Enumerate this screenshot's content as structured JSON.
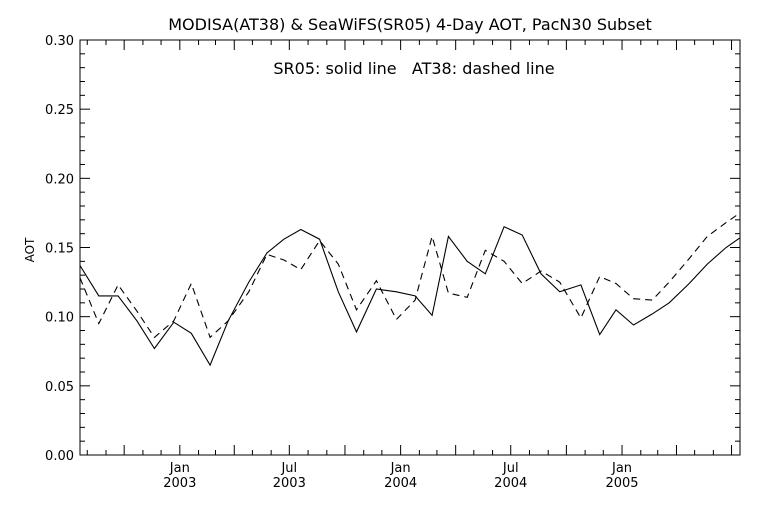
{
  "chart_data": {
    "type": "line",
    "title": "MODISA(AT38) & SeaWiFS(SR05) 4-Day AOT, PacN30 Subset",
    "annotation": "SR05: solid line   AT38: dashed line",
    "ylabel": "AOT",
    "xlabel": "",
    "ylim": [
      0.0,
      0.3
    ],
    "yticks": [
      "0.00",
      "0.05",
      "0.10",
      "0.15",
      "0.20",
      "0.25",
      "0.30"
    ],
    "xlim": [
      "2002-07-20",
      "2005-07-15"
    ],
    "xticks": [
      {
        "x": "2003-01-01",
        "label": [
          "Jan",
          "2003"
        ]
      },
      {
        "x": "2003-07-01",
        "label": [
          "Jul",
          "2003"
        ]
      },
      {
        "x": "2004-01-01",
        "label": [
          "Jan",
          "2004"
        ]
      },
      {
        "x": "2004-07-01",
        "label": [
          "Jul",
          "2004"
        ]
      },
      {
        "x": "2005-01-01",
        "label": [
          "Jan",
          "2005"
        ]
      }
    ],
    "grid": false,
    "series": [
      {
        "name": "SR05",
        "style": "solid",
        "color": "#000000",
        "x": [
          "2002-07-20",
          "2002-08-20",
          "2002-09-21",
          "2002-10-22",
          "2002-11-20",
          "2002-12-22",
          "2003-01-20",
          "2003-02-20",
          "2003-03-22",
          "2003-04-25",
          "2003-05-25",
          "2003-06-22",
          "2003-07-20",
          "2003-08-20",
          "2003-09-20",
          "2003-10-20",
          "2003-11-22",
          "2003-12-25",
          "2004-01-25",
          "2004-02-22",
          "2004-03-20",
          "2004-04-20",
          "2004-05-20",
          "2004-06-20",
          "2004-07-20",
          "2004-08-20",
          "2004-09-20",
          "2004-10-25",
          "2004-11-25",
          "2004-12-22",
          "2005-01-20",
          "2005-02-20",
          "2005-03-20",
          "2005-04-22",
          "2005-05-22",
          "2005-06-22",
          "2005-07-15"
        ],
        "y": [
          0.137,
          0.115,
          0.115,
          0.097,
          0.077,
          0.096,
          0.088,
          0.065,
          0.097,
          0.125,
          0.146,
          0.156,
          0.163,
          0.156,
          0.118,
          0.089,
          0.12,
          0.118,
          0.115,
          0.101,
          0.158,
          0.14,
          0.131,
          0.165,
          0.159,
          0.131,
          0.118,
          0.123,
          0.087,
          0.105,
          0.094,
          0.102,
          0.11,
          0.124,
          0.138,
          0.15,
          0.157
        ]
      },
      {
        "name": "AT38",
        "style": "dashed",
        "color": "#000000",
        "x": [
          "2002-07-20",
          "2002-08-20",
          "2002-09-21",
          "2002-10-22",
          "2002-11-20",
          "2002-12-22",
          "2003-01-20",
          "2003-02-20",
          "2003-03-22",
          "2003-04-25",
          "2003-05-25",
          "2003-06-22",
          "2003-07-20",
          "2003-08-20",
          "2003-09-20",
          "2003-10-20",
          "2003-11-22",
          "2003-12-25",
          "2004-01-25",
          "2004-02-22",
          "2004-03-20",
          "2004-04-20",
          "2004-05-20",
          "2004-06-20",
          "2004-07-20",
          "2004-08-20",
          "2004-09-20",
          "2004-10-25",
          "2004-11-25",
          "2004-12-22",
          "2005-01-20",
          "2005-02-20",
          "2005-03-20",
          "2005-04-22",
          "2005-05-22",
          "2005-06-22",
          "2005-07-15"
        ],
        "y": [
          0.128,
          0.095,
          0.123,
          0.104,
          0.085,
          0.097,
          0.124,
          0.085,
          0.097,
          0.118,
          0.145,
          0.141,
          0.134,
          0.155,
          0.138,
          0.105,
          0.126,
          0.098,
          0.112,
          0.158,
          0.117,
          0.114,
          0.148,
          0.14,
          0.124,
          0.133,
          0.125,
          0.099,
          0.129,
          0.124,
          0.113,
          0.112,
          0.125,
          0.142,
          0.158,
          0.168,
          0.175
        ]
      }
    ]
  }
}
